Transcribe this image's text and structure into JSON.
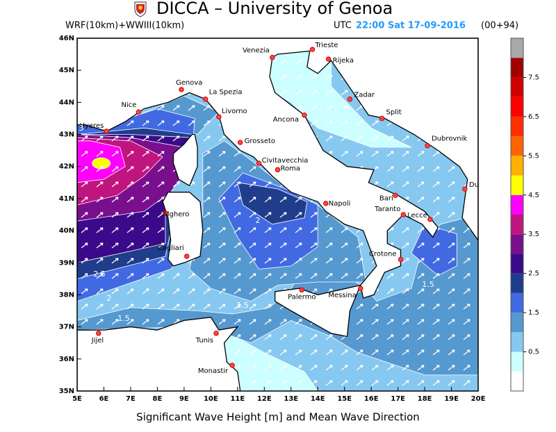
{
  "header": {
    "title": "DICCA – University of Genoa",
    "model": "WRF(10km)+WWIII(10km)",
    "utc": "UTC",
    "time": "22:00 Sat 17-09-2016",
    "run": "(00+94)"
  },
  "map": {
    "lat_ticks": [
      "35N",
      "36N",
      "37N",
      "38N",
      "39N",
      "40N",
      "41N",
      "42N",
      "43N",
      "44N",
      "45N",
      "46N"
    ],
    "lon_ticks": [
      "5E",
      "6E",
      "7E",
      "8E",
      "9E",
      "10E",
      "11E",
      "12E",
      "13E",
      "14E",
      "15E",
      "16E",
      "17E",
      "18E",
      "19E",
      "20E"
    ],
    "cities": [
      "Venezia",
      "Trieste",
      "Rijeka",
      "Genova",
      "La Spezia",
      "Nice",
      "Livorno",
      "Zadar",
      "Split",
      "Ancona",
      "Hyeres",
      "Grosseto",
      "Civitavecchia",
      "Roma",
      "Dubrovnik",
      "Du",
      "Bari",
      "Napoli",
      "Taranto",
      "Lecce",
      "Alghero",
      "Cagliari",
      "Crotone",
      "Palermo",
      "Messina",
      "Tunis",
      "Jijel",
      "Monastir"
    ],
    "contour_labels": [
      "3",
      "2.5",
      "2",
      "1.5",
      "2",
      "1.5",
      "1.5"
    ]
  },
  "colorbar": {
    "colors": [
      "#ffffff",
      "#ccffff",
      "#87c8f0",
      "#5599d0",
      "#4169e1",
      "#1f3d8a",
      "#3b0a8a",
      "#7a0f8e",
      "#c0157f",
      "#ff00ff",
      "#ffff00",
      "#ffb000",
      "#ff6400",
      "#ff3000",
      "#ff0000",
      "#d00000",
      "#a00000",
      "#a8a8a8"
    ],
    "ticks": [
      0.5,
      1.5,
      2.5,
      3.5,
      4.5,
      5.5,
      6.5,
      7.5
    ]
  },
  "caption": "Significant Wave Height [m] and Mean Wave Direction"
}
